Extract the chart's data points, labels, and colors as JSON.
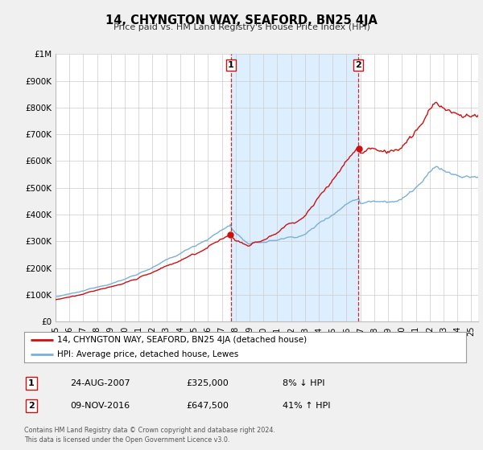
{
  "title": "14, CHYNGTON WAY, SEAFORD, BN25 4JA",
  "subtitle": "Price paid vs. HM Land Registry's House Price Index (HPI)",
  "ylim": [
    0,
    1000000
  ],
  "yticks": [
    0,
    100000,
    200000,
    300000,
    400000,
    500000,
    600000,
    700000,
    800000,
    900000,
    1000000
  ],
  "ytick_labels": [
    "£0",
    "£100K",
    "£200K",
    "£300K",
    "£400K",
    "£500K",
    "£600K",
    "£700K",
    "£800K",
    "£900K",
    "£1M"
  ],
  "xlim_start": 1995.0,
  "xlim_end": 2025.5,
  "sale1_date": 2007.647,
  "sale1_price": 325000,
  "sale2_date": 2016.86,
  "sale2_price": 647500,
  "hpi_color": "#7ab0d8",
  "price_color": "#cc1111",
  "shade_color": "#ddeeff",
  "legend_line1": "14, CHYNGTON WAY, SEAFORD, BN25 4JA (detached house)",
  "legend_line2": "HPI: Average price, detached house, Lewes",
  "table_row1_num": "1",
  "table_row1_date": "24-AUG-2007",
  "table_row1_price": "£325,000",
  "table_row1_hpi": "8% ↓ HPI",
  "table_row2_num": "2",
  "table_row2_date": "09-NOV-2016",
  "table_row2_price": "£647,500",
  "table_row2_hpi": "41% ↑ HPI",
  "footer1": "Contains HM Land Registry data © Crown copyright and database right 2024.",
  "footer2": "This data is licensed under the Open Government Licence v3.0.",
  "background_color": "#f0f0f0",
  "plot_bg_color": "#ffffff"
}
